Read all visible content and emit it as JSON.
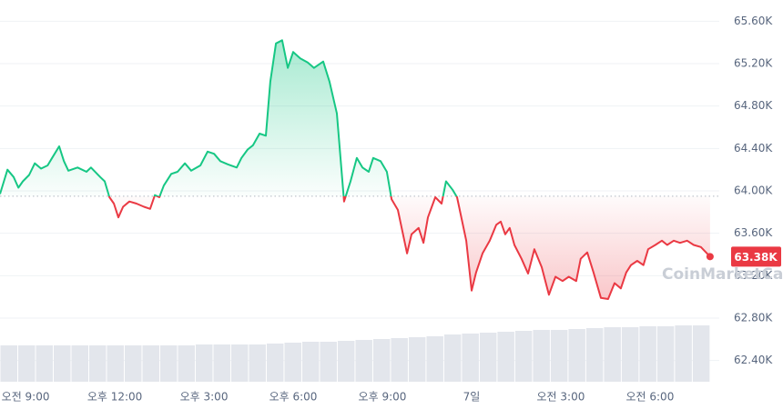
{
  "chart_data": {
    "type": "line",
    "x": [
      8.14,
      8.39,
      8.6,
      8.76,
      8.91,
      9.12,
      9.31,
      9.52,
      9.74,
      9.89,
      10.13,
      10.29,
      10.44,
      10.75,
      11.05,
      11.2,
      11.51,
      11.66,
      11.82,
      11.97,
      12.12,
      12.28,
      12.49,
      12.73,
      12.98,
      13.19,
      13.35,
      13.5,
      13.65,
      13.9,
      14.11,
      14.36,
      14.57,
      14.88,
      15.12,
      15.34,
      15.55,
      15.8,
      16.1,
      16.26,
      16.47,
      16.65,
      16.87,
      17.08,
      17.23,
      17.42,
      17.63,
      17.82,
      18.0,
      18.24,
      18.49,
      18.7,
      19.01,
      19.22,
      19.47,
      19.71,
      19.93,
      20.14,
      20.33,
      20.54,
      20.69,
      20.94,
      21.15,
      21.31,
      21.52,
      21.83,
      21.98,
      22.22,
      22.38,
      22.53,
      22.78,
      22.99,
      23.14,
      23.36,
      23.51,
      23.82,
      24.0,
      24.15,
      24.37,
      24.61,
      24.83,
      24.98,
      25.13,
      25.28,
      25.44,
      25.68,
      25.9,
      26.11,
      26.36,
      26.6,
      26.82,
      27.06,
      27.27,
      27.52,
      27.67,
      27.89,
      28.1,
      28.35,
      28.59,
      28.81,
      29.02,
      29.2,
      29.36,
      29.57,
      29.78,
      29.94,
      30.18,
      30.4,
      30.58,
      30.8,
      31.01,
      31.25,
      31.47,
      31.71,
      32.02
    ],
    "values": [
      63970,
      64200,
      64130,
      64030,
      64090,
      64150,
      64260,
      64210,
      64240,
      64310,
      64420,
      64280,
      64190,
      64220,
      64180,
      64220,
      64130,
      64090,
      63940,
      63880,
      63750,
      63850,
      63900,
      63880,
      63850,
      63830,
      63960,
      63940,
      64050,
      64160,
      64180,
      64260,
      64190,
      64240,
      64370,
      64350,
      64280,
      64250,
      64220,
      64310,
      64390,
      64430,
      64540,
      64520,
      65030,
      65390,
      65420,
      65160,
      65310,
      65250,
      65210,
      65160,
      65220,
      65030,
      64730,
      63900,
      64090,
      64310,
      64220,
      64180,
      64310,
      64280,
      64180,
      63920,
      63820,
      63410,
      63590,
      63650,
      63510,
      63750,
      63940,
      63880,
      64090,
      64010,
      63940,
      63530,
      63060,
      63230,
      63410,
      63530,
      63680,
      63710,
      63590,
      63650,
      63490,
      63360,
      63220,
      63450,
      63280,
      63020,
      63190,
      63150,
      63190,
      63150,
      63360,
      63420,
      63230,
      62990,
      62980,
      63130,
      63080,
      63230,
      63300,
      63340,
      63300,
      63450,
      63490,
      63530,
      63490,
      63530,
      63510,
      63530,
      63490,
      63470,
      63380
    ],
    "xlim": [
      8.14,
      32.33
    ],
    "xticks": [
      {
        "value": 9,
        "label": "오전 9:00"
      },
      {
        "value": 12,
        "label": "오후 12:00"
      },
      {
        "value": 15,
        "label": "오후 3:00"
      },
      {
        "value": 18,
        "label": "오후 6:00"
      },
      {
        "value": 21,
        "label": "오후 9:00"
      },
      {
        "value": 24,
        "label": "7일"
      },
      {
        "value": 27,
        "label": "오전 3:00"
      },
      {
        "value": 30,
        "label": "오전 6:00"
      }
    ],
    "ylim": [
      62200,
      65800
    ],
    "yticks": [
      {
        "value": 62400,
        "label": "62.40K"
      },
      {
        "value": 62800,
        "label": "62.80K"
      },
      {
        "value": 63200,
        "label": "63.20K"
      },
      {
        "value": 63600,
        "label": "63.60K"
      },
      {
        "value": 64000,
        "label": "64.00K"
      },
      {
        "value": 64400,
        "label": "64.40K"
      },
      {
        "value": 64800,
        "label": "64.80K"
      },
      {
        "value": 65200,
        "label": "65.20K"
      },
      {
        "value": 65600,
        "label": "65.60K"
      }
    ],
    "grid": true,
    "baseline": 63950,
    "up_color": "#16c784",
    "down_color": "#ea3943",
    "current_price": 63380,
    "current_price_label": "63.38K",
    "watermark": "CoinMarketCap",
    "volume": {
      "values": [
        40,
        40,
        40,
        40,
        40,
        40,
        40,
        40,
        40,
        40,
        40,
        41,
        41,
        41,
        41,
        42,
        43,
        44,
        44,
        45,
        46,
        47,
        48,
        49,
        50,
        52,
        53,
        54,
        55,
        56,
        57,
        57,
        58,
        59,
        60,
        60,
        61,
        61,
        62,
        62
      ],
      "ylim": [
        0,
        70
      ],
      "color": "#e3e6ec"
    }
  }
}
